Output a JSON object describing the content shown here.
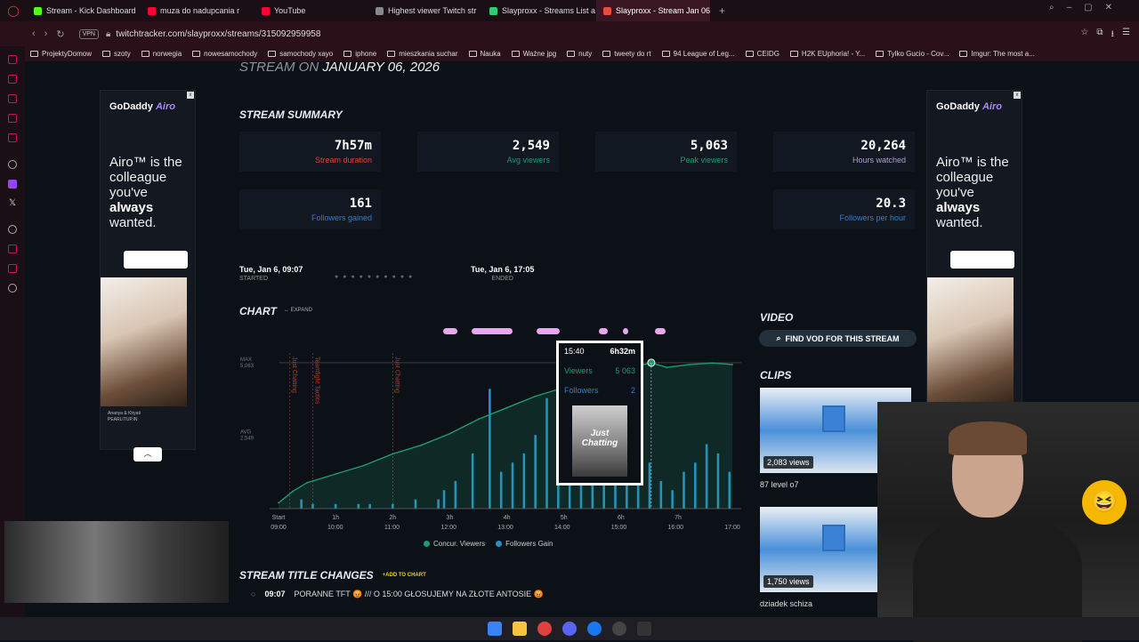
{
  "tabs": [
    {
      "label": "Stream - Kick Dashboard",
      "color": "#53fc18",
      "active": false
    },
    {
      "label": "muza do nadupcania r",
      "color": "#ff0033",
      "active": false
    },
    {
      "label": "YouTube",
      "color": "#ff0033",
      "active": false
    },
    {
      "label": "Highest viewer Twitch str",
      "color": "#888888",
      "active": false
    },
    {
      "label": "Slayproxx - Streams List a",
      "color": "#2ecc71",
      "active": false
    },
    {
      "label": "Slayproxx - Stream Jan 06",
      "color": "#e74c3c",
      "active": true
    }
  ],
  "url": "twitchtracker.com/slayproxx/streams/315092959958",
  "vpn_label": "VPN",
  "bookmarks": [
    "ProjektyDomow",
    "szoty",
    "norwegia",
    "nowesamochody",
    "samochody xayo",
    "iphone",
    "mieszkania suchar",
    "Nauka",
    "Ważne jpg",
    "nuty",
    "tweety do rt",
    "94 League of Leg...",
    "CEIDG",
    "H2K EUphoria! - Y...",
    "Tylko Gucio - Cov...",
    "Imgur: The most a..."
  ],
  "page": {
    "stream_on": "STREAM ON",
    "date": "JANUARY 06, 2026",
    "summary_title": "STREAM SUMMARY",
    "stats": [
      {
        "value": "7h57m",
        "label": "Stream duration",
        "color": "#e0413f"
      },
      {
        "value": "2,549",
        "label": "Avg viewers",
        "color": "#1f9b6f"
      },
      {
        "value": "5,063",
        "label": "Peak viewers",
        "color": "#1f9b6f"
      },
      {
        "value": "20,264",
        "label": "Hours watched",
        "color": "#b19cd9"
      },
      {
        "value": "161",
        "label": "Followers gained",
        "color": "#2d7fd9"
      },
      {
        "value": "20.3",
        "label": "Followers per hour",
        "color": "#2d7fd9"
      }
    ],
    "started": {
      "time": "Tue, Jan 6, 09:07",
      "label": "STARTED"
    },
    "ended": {
      "time": "Tue, Jan 6, 17:05",
      "label": "ENDED"
    },
    "chart_title": "CHART",
    "expand_label": "↔ EXPAND",
    "video_title": "VIDEO",
    "find_vod": "FIND VOD FOR THIS STREAM",
    "clips_title": "CLIPS",
    "clips": [
      {
        "views": "2,083 views",
        "title": "87 level o7"
      },
      {
        "views": "1,750 views",
        "title": "dziadek schiza"
      }
    ],
    "title_changes": "STREAM TITLE CHANGES",
    "add_to_chart": "+ADD TO CHART",
    "title_row": {
      "time": "09:07",
      "text": "PORANNE TFT 😡 /// O 15:00 GŁOSUJEMY NA ZŁOTE ANTOSIE 😡"
    },
    "tooltip": {
      "time": "15:40",
      "elapsed": "6h32m",
      "viewers_label": "Viewers",
      "viewers": "5 063",
      "followers_label": "Followers",
      "followers": "2",
      "thumb_text": "Just Chatting"
    }
  },
  "ad": {
    "brand": "GoDaddy",
    "product": "Airo",
    "line1": "Airo™ is the colleague you've",
    "bold": "always",
    "line2": "wanted.",
    "credit1": "Ananya & Khyati",
    "credit2": "PEARLITUP.IN"
  },
  "chart_data": {
    "type": "line",
    "x_ticks": [
      "Start",
      "1h",
      "2h",
      "3h",
      "4h",
      "5h",
      "6h",
      "7h"
    ],
    "x_times": [
      "09:00",
      "10:00",
      "11:00",
      "12:00",
      "13:00",
      "14:00",
      "15:00",
      "16:00",
      "17:00"
    ],
    "y_labels": [
      {
        "name": "MAX",
        "value": "5,063"
      },
      {
        "name": "AVG",
        "value": "2,549"
      }
    ],
    "ylim": [
      0,
      5400
    ],
    "series": [
      {
        "name": "Concur. Viewers",
        "color": "#1f9b6f",
        "x_hours": [
          0,
          0.25,
          0.5,
          1,
          1.5,
          2,
          2.5,
          3,
          3.5,
          4,
          4.5,
          5,
          5.5,
          6,
          6.53,
          6.8,
          7.2,
          7.6,
          7.95
        ],
        "values": [
          200,
          600,
          900,
          1200,
          1500,
          1900,
          2200,
          2600,
          3100,
          3500,
          3900,
          4200,
          4500,
          4800,
          5063,
          4900,
          5000,
          5050,
          5000
        ]
      },
      {
        "name": "Followers Gain",
        "color": "#2a8fc6",
        "x_hours": [
          0.4,
          0.6,
          1,
          1.4,
          1.6,
          2,
          2.4,
          2.8,
          2.9,
          3.1,
          3.4,
          3.7,
          3.9,
          4.1,
          4.3,
          4.5,
          4.7,
          4.9,
          5.1,
          5.3,
          5.5,
          5.7,
          5.9,
          6.1,
          6.3,
          6.5,
          6.7,
          6.9,
          7.1,
          7.3,
          7.5,
          7.7,
          7.9
        ],
        "values": [
          1,
          0.5,
          0.5,
          0.5,
          0.5,
          0.5,
          1,
          1,
          2,
          3,
          6,
          13,
          4,
          5,
          6,
          8,
          12,
          7,
          6,
          10,
          8,
          6,
          9,
          12,
          8,
          5,
          3,
          2,
          4,
          5,
          7,
          6,
          4
        ]
      }
    ],
    "annotations": [
      "Just Chatting",
      "Teamfight Tactics",
      "Just Chatting"
    ],
    "legend": "bottom-center"
  }
}
